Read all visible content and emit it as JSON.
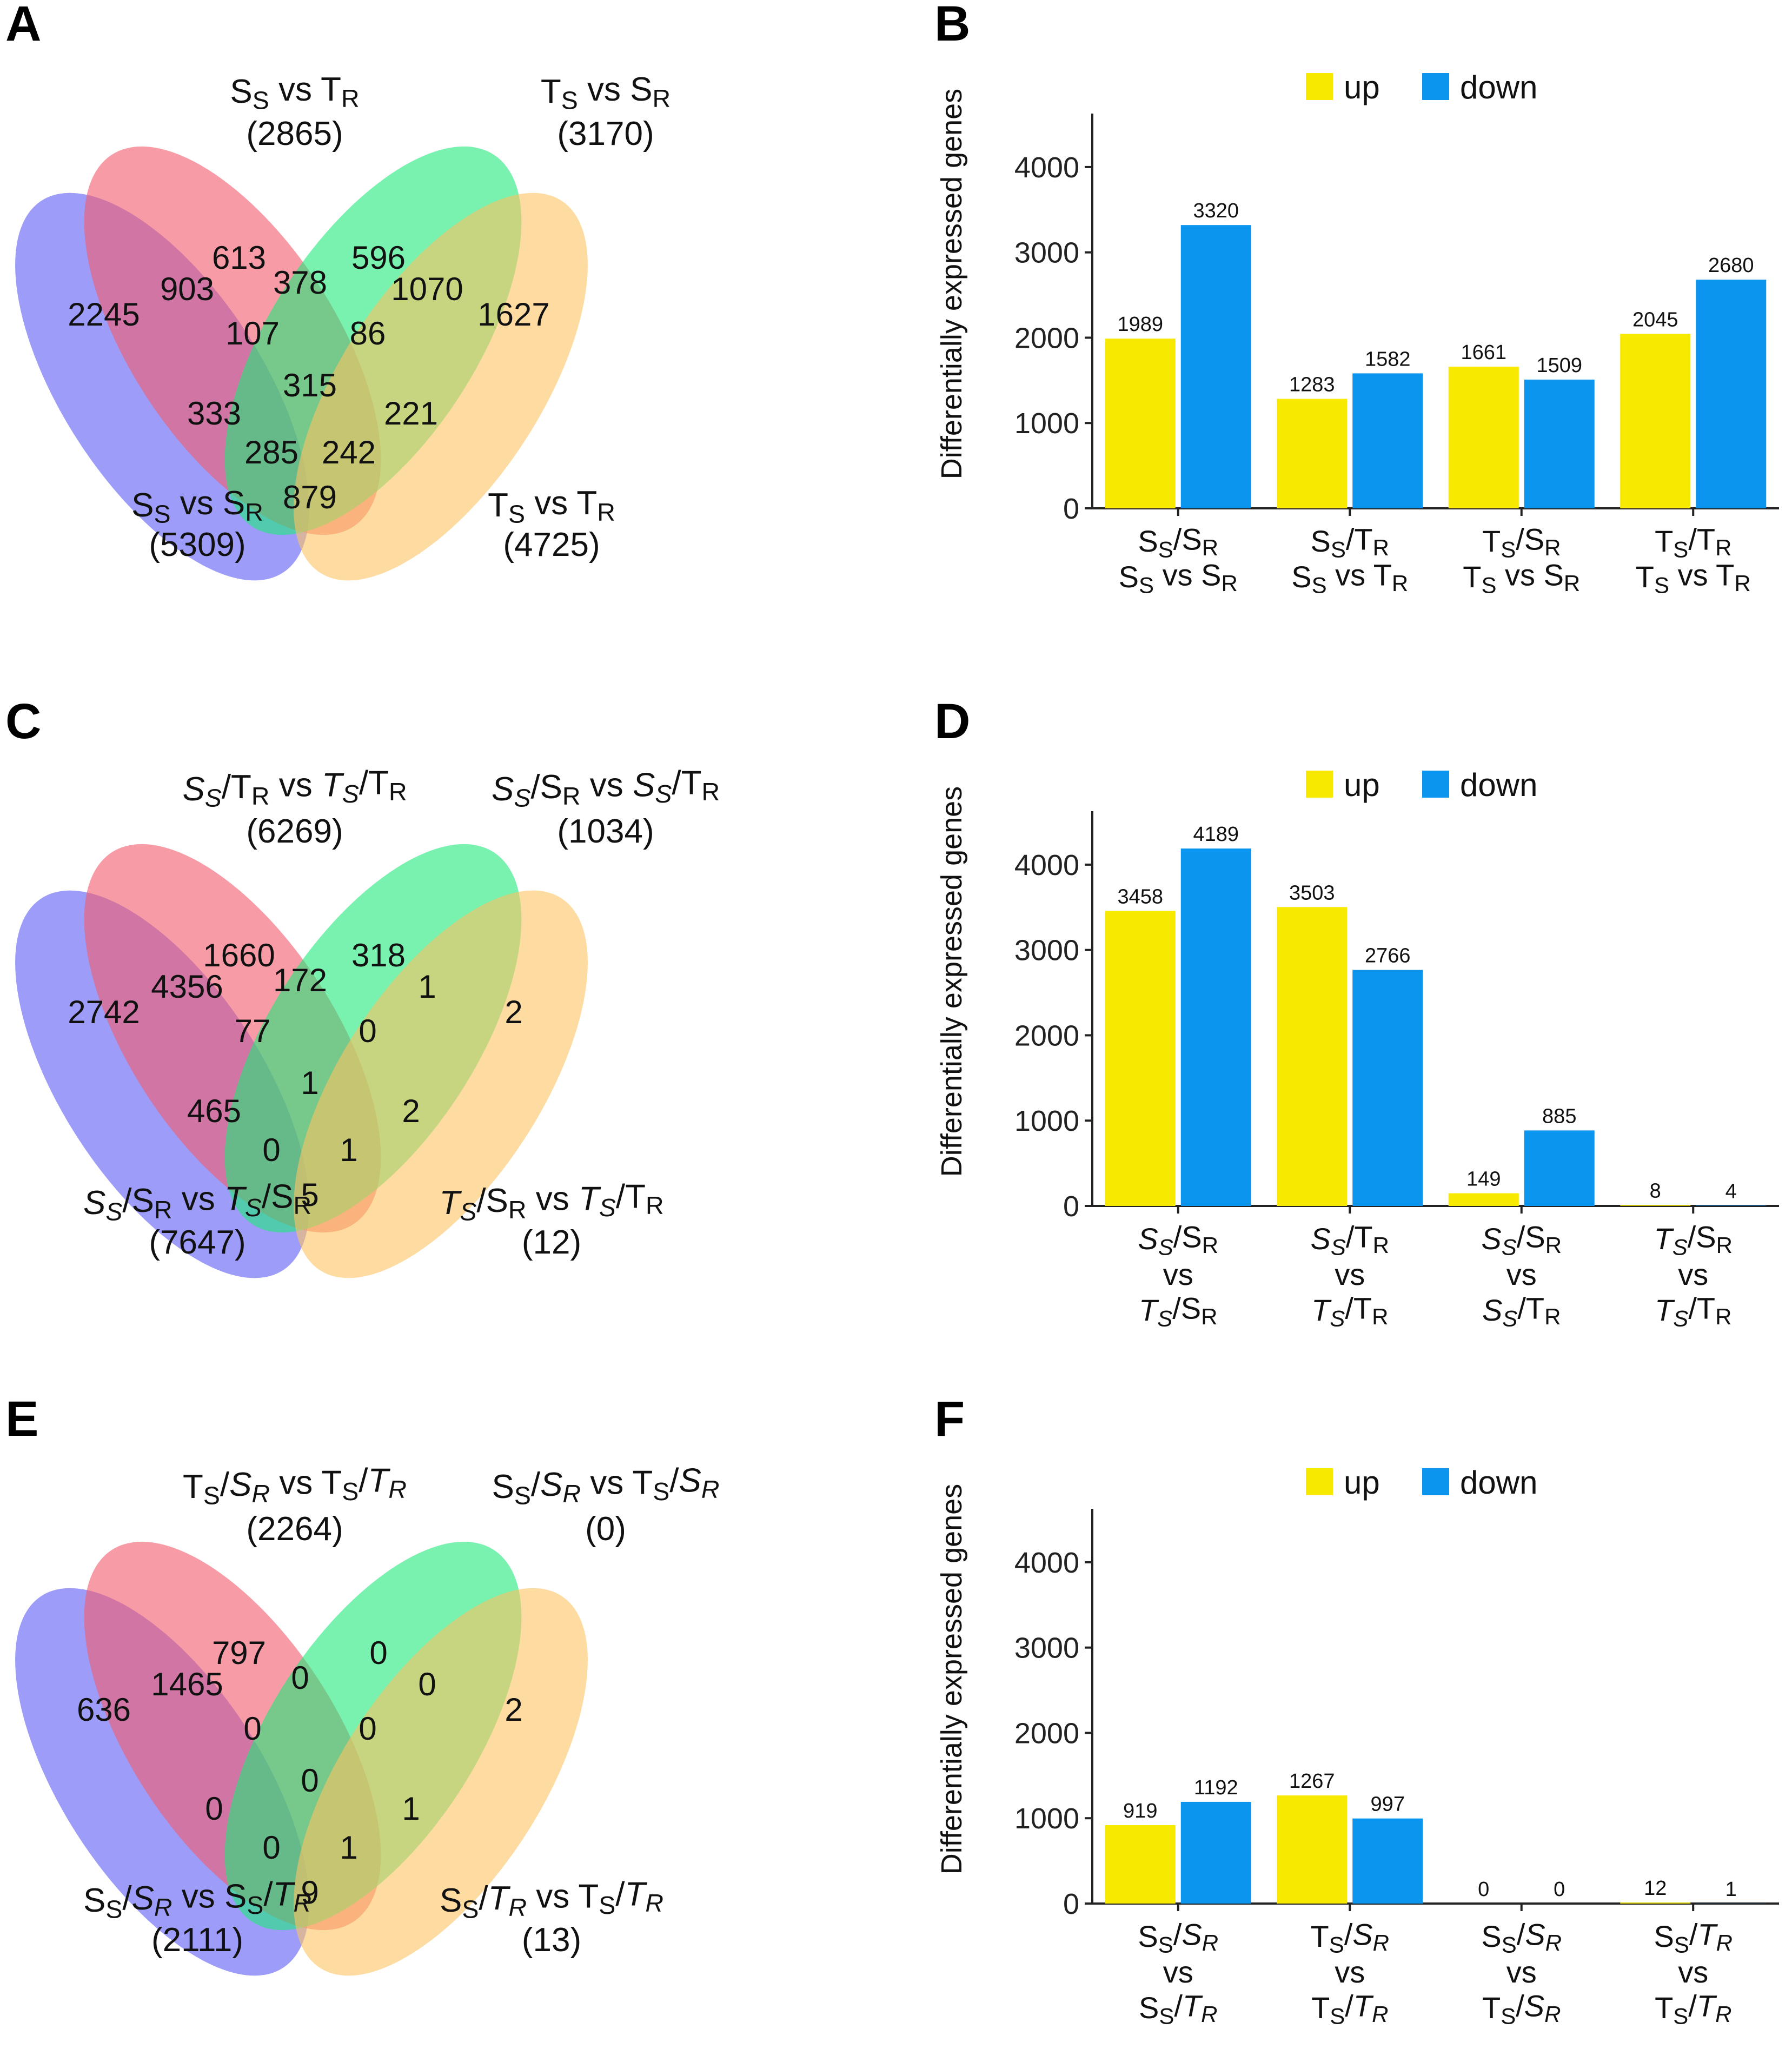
{
  "colors": {
    "up": "#f7ea00",
    "down": "#0c95ef",
    "venn1": "#5b5bf5",
    "venn2": "#f25a6a",
    "venn3": "#1fe87a",
    "venn4": "#fcc362"
  },
  "panels": {
    "A": {
      "letter": "A",
      "set_labels": [
        {
          "name": [
            {
              "t": "S"
            },
            {
              "t": "S",
              "sub": true
            },
            {
              "t": " vs T"
            },
            {
              "t": "R",
              "sub": true
            }
          ],
          "count": "(2865)"
        },
        {
          "name": [
            {
              "t": "T"
            },
            {
              "t": "S",
              "sub": true
            },
            {
              "t": " vs S"
            },
            {
              "t": "R",
              "sub": true
            }
          ],
          "count": "(3170)"
        },
        {
          "name": [
            {
              "t": "S"
            },
            {
              "t": "S",
              "sub": true
            },
            {
              "t": " vs S"
            },
            {
              "t": "R",
              "sub": true
            }
          ],
          "count": "(5309)"
        },
        {
          "name": [
            {
              "t": "T"
            },
            {
              "t": "S",
              "sub": true
            },
            {
              "t": " vs T"
            },
            {
              "t": "R",
              "sub": true
            }
          ],
          "count": "(4725)"
        }
      ],
      "regions": [
        "613",
        "596",
        "2245",
        "903",
        "378",
        "1070",
        "1627",
        "107",
        "86",
        "315",
        "333",
        "221",
        "285",
        "242",
        "879"
      ]
    },
    "C": {
      "letter": "C",
      "set_labels": [
        {
          "name": [
            {
              "t": "S",
              "i": true
            },
            {
              "t": "S",
              "sub": true,
              "i": true
            },
            {
              "t": "/T"
            },
            {
              "t": "R",
              "sub": true
            },
            {
              "t": " vs "
            },
            {
              "t": "T",
              "i": true
            },
            {
              "t": "S",
              "sub": true,
              "i": true
            },
            {
              "t": "/T"
            },
            {
              "t": "R",
              "sub": true
            }
          ],
          "count": "(6269)"
        },
        {
          "name": [
            {
              "t": "S",
              "i": true
            },
            {
              "t": "S",
              "sub": true,
              "i": true
            },
            {
              "t": "/S"
            },
            {
              "t": "R",
              "sub": true
            },
            {
              "t": " vs "
            },
            {
              "t": "S",
              "i": true
            },
            {
              "t": "S",
              "sub": true,
              "i": true
            },
            {
              "t": "/T"
            },
            {
              "t": "R",
              "sub": true
            }
          ],
          "count": "(1034)"
        },
        {
          "name": [
            {
              "t": "S",
              "i": true
            },
            {
              "t": "S",
              "sub": true,
              "i": true
            },
            {
              "t": "/S"
            },
            {
              "t": "R",
              "sub": true
            },
            {
              "t": " vs "
            },
            {
              "t": "T",
              "i": true
            },
            {
              "t": "S",
              "sub": true,
              "i": true
            },
            {
              "t": "/S"
            },
            {
              "t": "R",
              "sub": true
            }
          ],
          "count": "(7647)"
        },
        {
          "name": [
            {
              "t": "T",
              "i": true
            },
            {
              "t": "S",
              "sub": true,
              "i": true
            },
            {
              "t": "/S"
            },
            {
              "t": "R",
              "sub": true
            },
            {
              "t": " vs "
            },
            {
              "t": "T",
              "i": true
            },
            {
              "t": "S",
              "sub": true,
              "i": true
            },
            {
              "t": "/T"
            },
            {
              "t": "R",
              "sub": true
            }
          ],
          "count": "(12)"
        }
      ],
      "regions": [
        "1660",
        "318",
        "2742",
        "4356",
        "172",
        "1",
        "2",
        "77",
        "0",
        "1",
        "465",
        "2",
        "0",
        "1",
        "5"
      ]
    },
    "E": {
      "letter": "E",
      "set_labels": [
        {
          "name": [
            {
              "t": "T"
            },
            {
              "t": "S",
              "sub": true
            },
            {
              "t": "/"
            },
            {
              "t": "S",
              "i": true
            },
            {
              "t": "R",
              "sub": true,
              "i": true
            },
            {
              "t": " vs T"
            },
            {
              "t": "S",
              "sub": true
            },
            {
              "t": "/"
            },
            {
              "t": "T",
              "i": true
            },
            {
              "t": "R",
              "sub": true,
              "i": true
            }
          ],
          "count": "(2264)"
        },
        {
          "name": [
            {
              "t": "S"
            },
            {
              "t": "S",
              "sub": true
            },
            {
              "t": "/"
            },
            {
              "t": "S",
              "i": true
            },
            {
              "t": "R",
              "sub": true,
              "i": true
            },
            {
              "t": " vs T"
            },
            {
              "t": "S",
              "sub": true
            },
            {
              "t": "/"
            },
            {
              "t": "S",
              "i": true
            },
            {
              "t": "R",
              "sub": true,
              "i": true
            }
          ],
          "count": "(0)"
        },
        {
          "name": [
            {
              "t": "S"
            },
            {
              "t": "S",
              "sub": true
            },
            {
              "t": "/"
            },
            {
              "t": "S",
              "i": true
            },
            {
              "t": "R",
              "sub": true,
              "i": true
            },
            {
              "t": " vs S"
            },
            {
              "t": "S",
              "sub": true
            },
            {
              "t": "/"
            },
            {
              "t": "T",
              "i": true
            },
            {
              "t": "R",
              "sub": true,
              "i": true
            }
          ],
          "count": "(2111)"
        },
        {
          "name": [
            {
              "t": "S"
            },
            {
              "t": "S",
              "sub": true
            },
            {
              "t": "/"
            },
            {
              "t": "T",
              "i": true
            },
            {
              "t": "R",
              "sub": true,
              "i": true
            },
            {
              "t": " vs T"
            },
            {
              "t": "S",
              "sub": true
            },
            {
              "t": "/"
            },
            {
              "t": "T",
              "i": true
            },
            {
              "t": "R",
              "sub": true,
              "i": true
            }
          ],
          "count": "(13)"
        }
      ],
      "regions": [
        "797",
        "0",
        "636",
        "1465",
        "0",
        "0",
        "2",
        "0",
        "0",
        "0",
        "0",
        "1",
        "0",
        "1",
        "9"
      ]
    }
  },
  "chart_data": [
    {
      "panel": "B",
      "type": "bar",
      "ylabel": "Differentially expressed genes",
      "ylim": [
        0,
        4500
      ],
      "yticks": [
        0,
        1000,
        2000,
        3000,
        4000
      ],
      "legend": [
        "up",
        "down"
      ],
      "categories": [
        [
          [
            {
              "t": "S"
            },
            {
              "t": "S",
              "sub": true
            },
            {
              "t": "/S"
            },
            {
              "t": "R",
              "sub": true
            }
          ],
          [
            {
              "t": "S"
            },
            {
              "t": "S",
              "sub": true
            },
            {
              "t": " vs S"
            },
            {
              "t": "R",
              "sub": true
            }
          ]
        ],
        [
          [
            {
              "t": "S"
            },
            {
              "t": "S",
              "sub": true
            },
            {
              "t": "/T"
            },
            {
              "t": "R",
              "sub": true
            }
          ],
          [
            {
              "t": "S"
            },
            {
              "t": "S",
              "sub": true
            },
            {
              "t": " vs T"
            },
            {
              "t": "R",
              "sub": true
            }
          ]
        ],
        [
          [
            {
              "t": "T"
            },
            {
              "t": "S",
              "sub": true
            },
            {
              "t": "/S"
            },
            {
              "t": "R",
              "sub": true
            }
          ],
          [
            {
              "t": "T"
            },
            {
              "t": "S",
              "sub": true
            },
            {
              "t": " vs S"
            },
            {
              "t": "R",
              "sub": true
            }
          ]
        ],
        [
          [
            {
              "t": "T"
            },
            {
              "t": "S",
              "sub": true
            },
            {
              "t": "/T"
            },
            {
              "t": "R",
              "sub": true
            }
          ],
          [
            {
              "t": "T"
            },
            {
              "t": "S",
              "sub": true
            },
            {
              "t": " vs T"
            },
            {
              "t": "R",
              "sub": true
            }
          ]
        ]
      ],
      "series": [
        {
          "name": "up",
          "values": [
            1989,
            1283,
            1661,
            2045
          ]
        },
        {
          "name": "down",
          "values": [
            3320,
            1582,
            1509,
            2680
          ]
        }
      ]
    },
    {
      "panel": "D",
      "type": "bar",
      "ylabel": "Differentially expressed genes",
      "ylim": [
        0,
        4500
      ],
      "yticks": [
        0,
        1000,
        2000,
        3000,
        4000
      ],
      "legend": [
        "up",
        "down"
      ],
      "categories": [
        [
          [
            {
              "t": "S",
              "i": true
            },
            {
              "t": "S",
              "sub": true,
              "i": true
            },
            {
              "t": "/S"
            },
            {
              "t": "R",
              "sub": true
            }
          ],
          [
            {
              "t": "vs"
            }
          ],
          [
            {
              "t": "T",
              "i": true
            },
            {
              "t": "S",
              "sub": true,
              "i": true
            },
            {
              "t": "/S"
            },
            {
              "t": "R",
              "sub": true
            }
          ]
        ],
        [
          [
            {
              "t": "S",
              "i": true
            },
            {
              "t": "S",
              "sub": true,
              "i": true
            },
            {
              "t": "/T"
            },
            {
              "t": "R",
              "sub": true
            }
          ],
          [
            {
              "t": "vs"
            }
          ],
          [
            {
              "t": "T",
              "i": true
            },
            {
              "t": "S",
              "sub": true,
              "i": true
            },
            {
              "t": "/T"
            },
            {
              "t": "R",
              "sub": true
            }
          ]
        ],
        [
          [
            {
              "t": "S",
              "i": true
            },
            {
              "t": "S",
              "sub": true,
              "i": true
            },
            {
              "t": "/S"
            },
            {
              "t": "R",
              "sub": true
            }
          ],
          [
            {
              "t": "vs"
            }
          ],
          [
            {
              "t": "S",
              "i": true
            },
            {
              "t": "S",
              "sub": true,
              "i": true
            },
            {
              "t": "/T"
            },
            {
              "t": "R",
              "sub": true
            }
          ]
        ],
        [
          [
            {
              "t": "T",
              "i": true
            },
            {
              "t": "S",
              "sub": true,
              "i": true
            },
            {
              "t": "/S"
            },
            {
              "t": "R",
              "sub": true
            }
          ],
          [
            {
              "t": "vs"
            }
          ],
          [
            {
              "t": "T",
              "i": true
            },
            {
              "t": "S",
              "sub": true,
              "i": true
            },
            {
              "t": "/T"
            },
            {
              "t": "R",
              "sub": true
            }
          ]
        ]
      ],
      "series": [
        {
          "name": "up",
          "values": [
            3458,
            3503,
            149,
            8
          ]
        },
        {
          "name": "down",
          "values": [
            4189,
            2766,
            885,
            4
          ]
        }
      ]
    },
    {
      "panel": "F",
      "type": "bar",
      "ylabel": "Differentially expressed genes",
      "ylim": [
        0,
        4500
      ],
      "yticks": [
        0,
        1000,
        2000,
        3000,
        4000
      ],
      "legend": [
        "up",
        "down"
      ],
      "categories": [
        [
          [
            {
              "t": "S"
            },
            {
              "t": "S",
              "sub": true
            },
            {
              "t": "/"
            },
            {
              "t": "S",
              "i": true
            },
            {
              "t": "R",
              "sub": true,
              "i": true
            }
          ],
          [
            {
              "t": "vs"
            }
          ],
          [
            {
              "t": "S"
            },
            {
              "t": "S",
              "sub": true
            },
            {
              "t": "/"
            },
            {
              "t": "T",
              "i": true
            },
            {
              "t": "R",
              "sub": true,
              "i": true
            }
          ]
        ],
        [
          [
            {
              "t": "T"
            },
            {
              "t": "S",
              "sub": true
            },
            {
              "t": "/"
            },
            {
              "t": "S",
              "i": true
            },
            {
              "t": "R",
              "sub": true,
              "i": true
            }
          ],
          [
            {
              "t": "vs"
            }
          ],
          [
            {
              "t": "T"
            },
            {
              "t": "S",
              "sub": true
            },
            {
              "t": "/"
            },
            {
              "t": "T",
              "i": true
            },
            {
              "t": "R",
              "sub": true,
              "i": true
            }
          ]
        ],
        [
          [
            {
              "t": "S"
            },
            {
              "t": "S",
              "sub": true
            },
            {
              "t": "/"
            },
            {
              "t": "S",
              "i": true
            },
            {
              "t": "R",
              "sub": true,
              "i": true
            }
          ],
          [
            {
              "t": "vs"
            }
          ],
          [
            {
              "t": "T"
            },
            {
              "t": "S",
              "sub": true
            },
            {
              "t": "/"
            },
            {
              "t": "S",
              "i": true
            },
            {
              "t": "R",
              "sub": true,
              "i": true
            }
          ]
        ],
        [
          [
            {
              "t": "S"
            },
            {
              "t": "S",
              "sub": true
            },
            {
              "t": "/"
            },
            {
              "t": "T",
              "i": true
            },
            {
              "t": "R",
              "sub": true,
              "i": true
            }
          ],
          [
            {
              "t": "vs"
            }
          ],
          [
            {
              "t": "T"
            },
            {
              "t": "S",
              "sub": true
            },
            {
              "t": "/"
            },
            {
              "t": "T",
              "i": true
            },
            {
              "t": "R",
              "sub": true,
              "i": true
            }
          ]
        ]
      ],
      "series": [
        {
          "name": "up",
          "values": [
            919,
            1267,
            0,
            12
          ]
        },
        {
          "name": "down",
          "values": [
            1192,
            997,
            0,
            1
          ]
        }
      ]
    }
  ]
}
